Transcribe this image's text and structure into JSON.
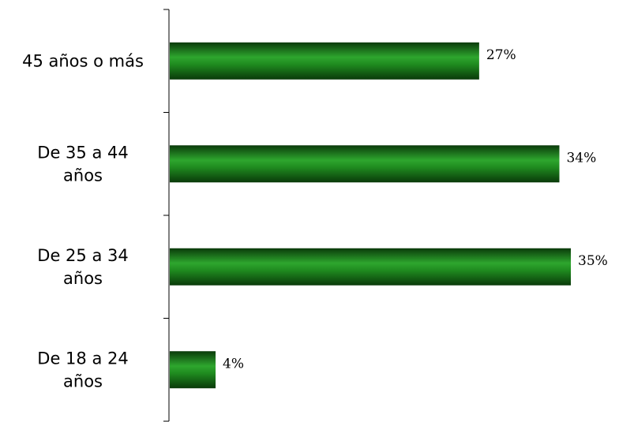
{
  "chart_data": {
    "type": "bar",
    "orientation": "horizontal",
    "categories": [
      "45 años o más",
      "De 35 a 44 años",
      "De 25 a 34 años",
      "De 18 a 24 años"
    ],
    "category_lines": [
      [
        "45 años o más"
      ],
      [
        "De 35 a 44",
        "años"
      ],
      [
        "De 25 a 34",
        "años"
      ],
      [
        "De 18 a 24",
        "años"
      ]
    ],
    "values": [
      27,
      34,
      35,
      4
    ],
    "data_labels": [
      "27%",
      "34%",
      "35%",
      "4%"
    ],
    "value_unit": "%",
    "xlim": [
      0,
      35
    ],
    "grid": false,
    "legend": "none",
    "colors": {
      "bar_dark": "#0a3a0a",
      "bar_mid": "#1f8a1f",
      "bar_light": "#2ea62e",
      "axis": "#000000"
    }
  }
}
